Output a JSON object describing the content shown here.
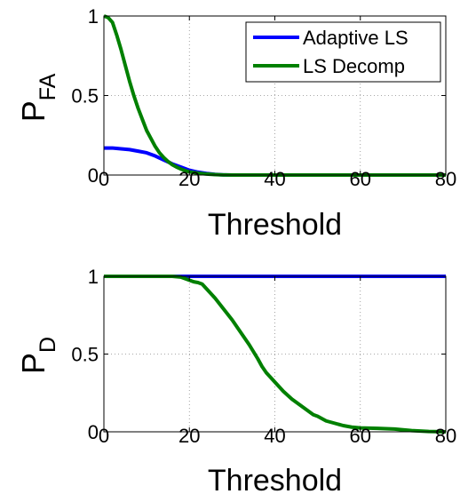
{
  "chart_data": [
    {
      "type": "line",
      "xlabel": "Threshold",
      "ylabel_main": "P",
      "ylabel_sub": "FA",
      "xlim": [
        0,
        80
      ],
      "ylim": [
        0,
        1
      ],
      "xticks": [
        "0",
        "20",
        "40",
        "60",
        "80"
      ],
      "yticks": [
        "0",
        "0.5",
        "1"
      ],
      "grid": true,
      "legend": "top-right",
      "series": [
        {
          "name": "Adaptive LS",
          "color": "#0000ff",
          "x": [
            0,
            2,
            4,
            6,
            8,
            10,
            12,
            14,
            16,
            18,
            20,
            22,
            24,
            26,
            28,
            30,
            40,
            60,
            80
          ],
          "y": [
            0.17,
            0.17,
            0.165,
            0.16,
            0.15,
            0.14,
            0.12,
            0.095,
            0.07,
            0.05,
            0.03,
            0.018,
            0.01,
            0.004,
            0.001,
            0,
            0,
            0,
            0
          ]
        },
        {
          "name": "LS Decomp",
          "color": "#008000",
          "x": [
            0,
            1,
            2,
            3,
            4,
            5,
            6,
            7,
            8,
            9,
            10,
            11,
            12,
            13,
            14,
            15,
            16,
            17,
            18,
            19,
            20,
            22,
            24,
            26,
            28,
            30,
            40,
            60,
            80
          ],
          "y": [
            1.0,
            0.99,
            0.96,
            0.88,
            0.79,
            0.69,
            0.59,
            0.5,
            0.42,
            0.35,
            0.28,
            0.23,
            0.18,
            0.14,
            0.11,
            0.085,
            0.065,
            0.05,
            0.038,
            0.028,
            0.02,
            0.012,
            0.006,
            0.003,
            0.001,
            0,
            0,
            0,
            0
          ]
        }
      ]
    },
    {
      "type": "line",
      "xlabel": "Threshold",
      "ylabel_main": "P",
      "ylabel_sub": "D",
      "xlim": [
        0,
        80
      ],
      "ylim": [
        0,
        1
      ],
      "xticks": [
        "0",
        "20",
        "40",
        "60",
        "80"
      ],
      "yticks": [
        "0",
        "0.5",
        "1"
      ],
      "grid": true,
      "series": [
        {
          "name": "Adaptive LS",
          "color": "#0000ff",
          "x": [
            0,
            80
          ],
          "y": [
            1.0,
            1.0
          ]
        },
        {
          "name": "LS Decomp",
          "color": "#008000",
          "x": [
            0,
            16,
            18,
            19,
            20,
            21,
            22,
            23,
            24,
            26,
            28,
            30,
            32,
            34,
            36,
            37,
            38,
            40,
            42,
            44,
            46,
            48,
            49,
            50,
            52,
            54,
            56,
            58,
            60,
            64,
            68,
            72,
            76,
            80
          ],
          "y": [
            1.0,
            1.0,
            0.995,
            0.985,
            0.975,
            0.965,
            0.96,
            0.95,
            0.92,
            0.86,
            0.79,
            0.72,
            0.64,
            0.56,
            0.47,
            0.42,
            0.38,
            0.32,
            0.26,
            0.21,
            0.17,
            0.13,
            0.11,
            0.1,
            0.07,
            0.055,
            0.04,
            0.03,
            0.025,
            0.022,
            0.018,
            0.008,
            0.002,
            0.0
          ]
        }
      ]
    }
  ]
}
